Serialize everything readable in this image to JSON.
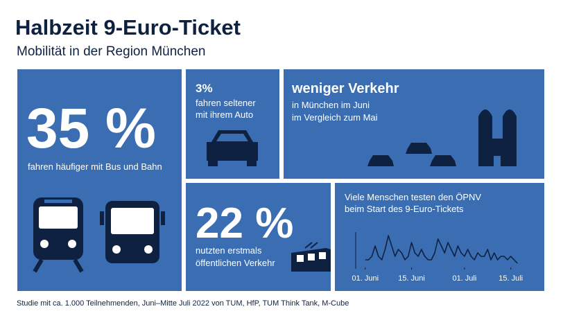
{
  "header": {
    "title": "Halbzeit 9-Euro-Ticket",
    "subtitle": "Mobilität in der Region München"
  },
  "panels": {
    "bus_bahn": {
      "value": "35 %",
      "text": "fahren häufiger mit Bus und Bahn"
    },
    "auto": {
      "value": "3%",
      "lines": [
        "fahren seltener",
        "mit ihrem Auto"
      ]
    },
    "verkehr": {
      "title": "weniger Verkehr",
      "lines": [
        "in München im Juni",
        "im Vergleich zum Mai"
      ]
    },
    "erstmals": {
      "value": "22 %",
      "lines": [
        "nutzten erstmals",
        "öffentlichen Verkehr"
      ]
    }
  },
  "chart_data": {
    "type": "line",
    "title_lines": [
      "Viele Menschen testen den ÖPNV",
      "beim Start des 9-Euro-Tickets"
    ],
    "x": [
      0,
      1,
      2,
      3,
      4,
      5,
      6,
      7,
      8,
      9,
      10,
      11,
      12,
      13,
      14,
      15,
      16,
      17,
      18,
      19,
      20,
      21,
      22,
      23,
      24,
      25,
      26,
      27,
      28,
      29,
      30,
      31,
      32,
      33,
      34,
      35,
      36,
      37,
      38,
      39,
      40,
      41,
      42,
      43,
      44,
      45,
      46
    ],
    "values": [
      2,
      2,
      3,
      6,
      3,
      2,
      5,
      9,
      6,
      3,
      5,
      4,
      2,
      3,
      7,
      4,
      3,
      5,
      3,
      2,
      2,
      4,
      8,
      6,
      4,
      7,
      5,
      3,
      6,
      4,
      3,
      5,
      3,
      2,
      4,
      3,
      3,
      5,
      2,
      4,
      2,
      3,
      3,
      2,
      3,
      2,
      1
    ],
    "color": "#0f2140",
    "xlim": [
      -1,
      47
    ],
    "ylim": [
      0,
      10
    ],
    "xticks": [
      {
        "value": 0,
        "label": "01. Juni"
      },
      {
        "value": 14,
        "label": "15. Juni"
      },
      {
        "value": 30,
        "label": "01. Juli"
      },
      {
        "value": 44,
        "label": "15. Juli"
      }
    ]
  },
  "footer": "Studie mit ca. 1.000 Teilnehmenden, Juni–Mitte Juli 2022 von TUM, HfP, TUM Think Tank, M-Cube"
}
